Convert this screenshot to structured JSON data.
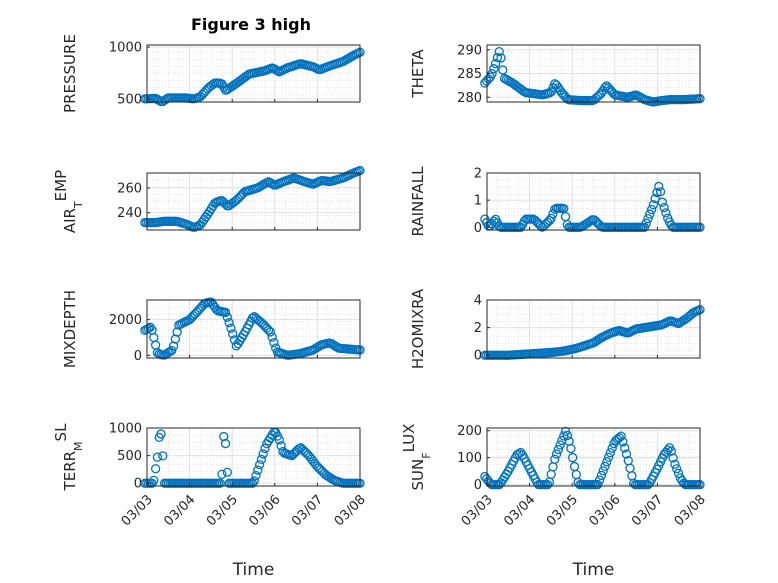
{
  "chart_data": {
    "type": "scatter",
    "title": "Figure 3 high",
    "marker_color": "#0072BD",
    "x_axis": {
      "label": "Time",
      "ticks": [
        "03/03",
        "03/04",
        "03/05",
        "03/06",
        "03/07",
        "03/08"
      ],
      "range": [
        0,
        5
      ]
    },
    "panels": [
      {
        "ylabel": {
          "main": "PRESSURE",
          "sub": ""
        },
        "ylim": [
          470,
          1020
        ],
        "yticks": [
          500,
          1000
        ],
        "series": [
          {
            "anchors": [
              [
                -0.05,
                500
              ],
              [
                0.2,
                505
              ],
              [
                0.35,
                470
              ],
              [
                0.5,
                510
              ],
              [
                0.9,
                510
              ],
              [
                1.1,
                500
              ],
              [
                1.25,
                520
              ],
              [
                1.45,
                610
              ],
              [
                1.6,
                655
              ],
              [
                1.75,
                650
              ],
              [
                1.85,
                580
              ],
              [
                2.1,
                650
              ],
              [
                2.4,
                740
              ],
              [
                2.75,
                770
              ],
              [
                2.95,
                800
              ],
              [
                3.1,
                760
              ],
              [
                3.3,
                800
              ],
              [
                3.6,
                840
              ],
              [
                3.9,
                810
              ],
              [
                4.05,
                780
              ],
              [
                4.3,
                820
              ],
              [
                4.6,
                860
              ],
              [
                4.85,
                920
              ],
              [
                5.0,
                950
              ]
            ]
          }
        ]
      },
      {
        "ylabel": {
          "main": "THETA",
          "sub": ""
        },
        "ylim": [
          279,
          291
        ],
        "yticks": [
          280,
          285,
          290
        ],
        "series": [
          {
            "anchors": [
              [
                -0.05,
                283
              ],
              [
                0.1,
                284.5
              ],
              [
                0.2,
                287
              ],
              [
                0.3,
                290
              ],
              [
                0.4,
                284
              ],
              [
                0.6,
                283
              ],
              [
                0.9,
                281
              ],
              [
                1.3,
                280.5
              ],
              [
                1.5,
                281
              ],
              [
                1.6,
                283
              ],
              [
                1.75,
                281
              ],
              [
                1.9,
                279.5
              ],
              [
                2.2,
                279.3
              ],
              [
                2.5,
                279.3
              ],
              [
                2.7,
                281
              ],
              [
                2.8,
                282.5
              ],
              [
                3.0,
                280.5
              ],
              [
                3.3,
                280
              ],
              [
                3.5,
                280.5
              ],
              [
                3.7,
                279.5
              ],
              [
                3.9,
                279
              ],
              [
                4.1,
                279.3
              ],
              [
                4.3,
                279.5
              ],
              [
                4.6,
                279.5
              ],
              [
                5.0,
                279.7
              ]
            ]
          }
        ]
      },
      {
        "ylabel": {
          "main": "AIR",
          "sub": "T",
          "rest": "EMP"
        },
        "ylim": [
          226,
          272
        ],
        "yticks": [
          240,
          260
        ],
        "series": [
          {
            "anchors": [
              [
                -0.05,
                232
              ],
              [
                0.2,
                232
              ],
              [
                0.4,
                233
              ],
              [
                0.7,
                233
              ],
              [
                0.9,
                231
              ],
              [
                1.1,
                228
              ],
              [
                1.25,
                230
              ],
              [
                1.45,
                240
              ],
              [
                1.6,
                248
              ],
              [
                1.75,
                250
              ],
              [
                1.9,
                245
              ],
              [
                2.1,
                250
              ],
              [
                2.3,
                257
              ],
              [
                2.6,
                260
              ],
              [
                2.85,
                265
              ],
              [
                3.0,
                262
              ],
              [
                3.2,
                265
              ],
              [
                3.45,
                268
              ],
              [
                3.7,
                265
              ],
              [
                3.9,
                263
              ],
              [
                4.1,
                266
              ],
              [
                4.3,
                265
              ],
              [
                4.6,
                268
              ],
              [
                4.85,
                272
              ],
              [
                5.0,
                274
              ]
            ]
          }
        ]
      },
      {
        "ylabel": {
          "main": "RAINFALL",
          "sub": ""
        },
        "ylim": [
          -0.1,
          2
        ],
        "yticks": [
          0,
          1,
          2
        ],
        "series": [
          {
            "anchors": [
              [
                -0.05,
                0.3
              ],
              [
                0.05,
                0
              ],
              [
                0.2,
                0.3
              ],
              [
                0.3,
                0
              ],
              [
                0.8,
                0
              ],
              [
                0.9,
                0.3
              ],
              [
                1.1,
                0.3
              ],
              [
                1.3,
                0
              ],
              [
                1.5,
                0.3
              ],
              [
                1.6,
                0.7
              ],
              [
                1.8,
                0.7
              ],
              [
                1.9,
                0
              ],
              [
                2.2,
                0
              ],
              [
                2.5,
                0.3
              ],
              [
                2.7,
                0
              ],
              [
                3.2,
                0
              ],
              [
                3.4,
                0
              ],
              [
                3.7,
                0
              ],
              [
                3.9,
                0.8
              ],
              [
                4.05,
                1.6
              ],
              [
                4.1,
                1.0
              ],
              [
                4.25,
                0.3
              ],
              [
                4.35,
                0
              ],
              [
                4.6,
                0
              ],
              [
                5.0,
                0
              ]
            ]
          }
        ]
      },
      {
        "ylabel": {
          "main": "MIXDEPTH",
          "sub": ""
        },
        "ylim": [
          -150,
          3100
        ],
        "yticks": [
          0,
          2000
        ],
        "series": [
          {
            "anchors": [
              [
                -0.05,
                1400
              ],
              [
                0.1,
                1600
              ],
              [
                0.25,
                100
              ],
              [
                0.4,
                0
              ],
              [
                0.6,
                300
              ],
              [
                0.75,
                1700
              ],
              [
                1.0,
                2000
              ],
              [
                1.2,
                2500
              ],
              [
                1.35,
                2900
              ],
              [
                1.5,
                3000
              ],
              [
                1.65,
                2500
              ],
              [
                1.85,
                2400
              ],
              [
                2.0,
                1300
              ],
              [
                2.1,
                500
              ],
              [
                2.3,
                1300
              ],
              [
                2.5,
                2200
              ],
              [
                2.7,
                1800
              ],
              [
                2.9,
                1300
              ],
              [
                3.05,
                200
              ],
              [
                3.3,
                0
              ],
              [
                3.6,
                100
              ],
              [
                3.9,
                300
              ],
              [
                4.1,
                600
              ],
              [
                4.3,
                700
              ],
              [
                4.5,
                400
              ],
              [
                5.0,
                300
              ]
            ]
          }
        ]
      },
      {
        "ylabel": {
          "main": "H2OMIXRA",
          "sub": ""
        },
        "ylim": [
          -0.2,
          4
        ],
        "yticks": [
          0,
          2,
          4
        ],
        "series": [
          {
            "anchors": [
              [
                -0.05,
                0
              ],
              [
                0.5,
                0
              ],
              [
                1.0,
                0.1
              ],
              [
                1.5,
                0.2
              ],
              [
                1.8,
                0.3
              ],
              [
                2.1,
                0.5
              ],
              [
                2.3,
                0.7
              ],
              [
                2.5,
                0.9
              ],
              [
                2.7,
                1.3
              ],
              [
                2.9,
                1.6
              ],
              [
                3.1,
                1.8
              ],
              [
                3.3,
                1.6
              ],
              [
                3.5,
                1.9
              ],
              [
                3.7,
                2.0
              ],
              [
                3.9,
                2.1
              ],
              [
                4.1,
                2.2
              ],
              [
                4.3,
                2.5
              ],
              [
                4.5,
                2.3
              ],
              [
                4.7,
                2.7
              ],
              [
                4.85,
                3.1
              ],
              [
                5.0,
                3.3
              ]
            ]
          }
        ]
      },
      {
        "ylabel": {
          "main": "TERR",
          "sub": "M",
          "rest": "SL"
        },
        "ylim": [
          -50,
          1000
        ],
        "yticks": [
          0,
          500,
          1000
        ],
        "series": [
          {
            "anchors": [
              [
                -0.05,
                0
              ],
              [
                0.15,
                0
              ],
              [
                0.25,
                500
              ],
              [
                0.3,
                950
              ],
              [
                0.35,
                850
              ],
              [
                0.4,
                0
              ],
              [
                1.0,
                0
              ],
              [
                1.5,
                0
              ],
              [
                1.75,
                0
              ],
              [
                1.8,
                850
              ],
              [
                1.85,
                700
              ],
              [
                1.9,
                0
              ],
              [
                2.5,
                0
              ],
              [
                2.8,
                700
              ],
              [
                3.0,
                950
              ],
              [
                3.1,
                800
              ],
              [
                3.2,
                550
              ],
              [
                3.4,
                500
              ],
              [
                3.6,
                650
              ],
              [
                3.8,
                500
              ],
              [
                4.0,
                300
              ],
              [
                4.2,
                150
              ],
              [
                4.4,
                50
              ],
              [
                4.6,
                0
              ],
              [
                5.0,
                0
              ]
            ]
          }
        ]
      },
      {
        "ylabel": {
          "main": "SUN",
          "sub": "F",
          "rest": "LUX"
        },
        "ylim": [
          -5,
          210
        ],
        "yticks": [
          0,
          100,
          200
        ],
        "series": [
          {
            "anchors": [
              [
                -0.05,
                30
              ],
              [
                0.1,
                0
              ],
              [
                0.3,
                0
              ],
              [
                0.5,
                50
              ],
              [
                0.7,
                110
              ],
              [
                0.8,
                120
              ],
              [
                1.0,
                60
              ],
              [
                1.2,
                0
              ],
              [
                1.45,
                0
              ],
              [
                1.6,
                100
              ],
              [
                1.75,
                160
              ],
              [
                1.85,
                200
              ],
              [
                1.95,
                150
              ],
              [
                2.05,
                70
              ],
              [
                2.15,
                0
              ],
              [
                2.6,
                0
              ],
              [
                2.85,
                100
              ],
              [
                3.0,
                160
              ],
              [
                3.15,
                180
              ],
              [
                3.3,
                100
              ],
              [
                3.45,
                0
              ],
              [
                3.8,
                0
              ],
              [
                4.0,
                60
              ],
              [
                4.15,
                110
              ],
              [
                4.3,
                140
              ],
              [
                4.4,
                80
              ],
              [
                4.55,
                20
              ],
              [
                4.65,
                0
              ],
              [
                4.85,
                0
              ],
              [
                5.0,
                0
              ]
            ]
          }
        ]
      }
    ]
  }
}
